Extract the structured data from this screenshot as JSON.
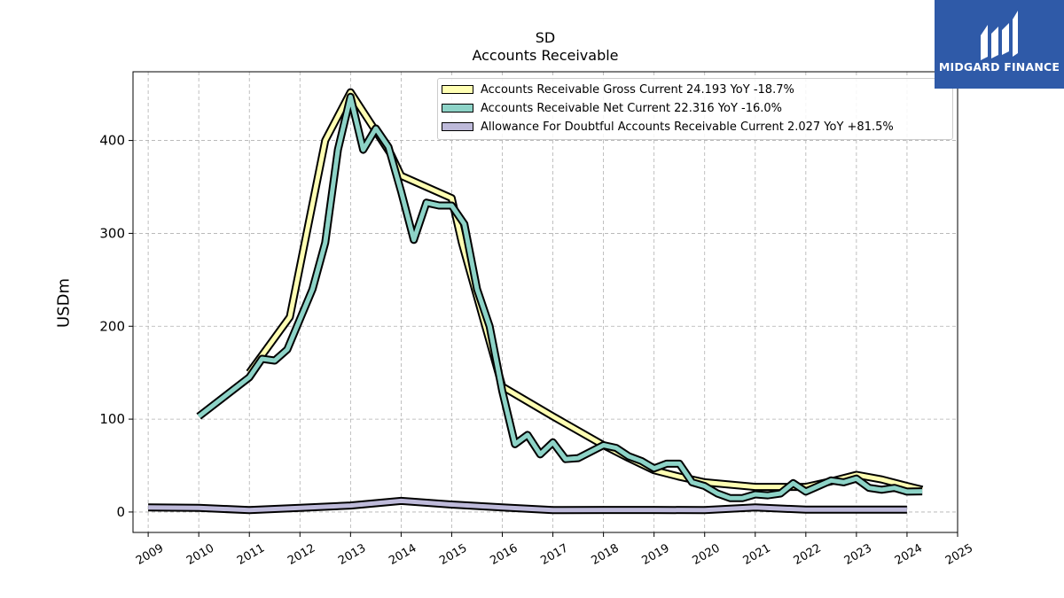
{
  "titles": {
    "line1": "SD",
    "line2": "Accounts Receivable"
  },
  "logo": {
    "text": "MIDGARD FINANCE",
    "color": "#2f5aa8"
  },
  "chart_data": {
    "type": "line",
    "title": "SD",
    "subtitle": "Accounts Receivable",
    "xlabel": "",
    "ylabel": "USDm",
    "xlim": [
      2008.7,
      2025.0
    ],
    "ylim": [
      -22,
      474
    ],
    "x_ticks": [
      2009,
      2010,
      2011,
      2012,
      2013,
      2014,
      2015,
      2016,
      2017,
      2018,
      2019,
      2020,
      2021,
      2022,
      2023,
      2024,
      2025
    ],
    "y_ticks": [
      0,
      100,
      200,
      300,
      400
    ],
    "grid": true,
    "legend_position": "top-right",
    "series": [
      {
        "name": "Accounts Receivable Gross Current  24.193 YoY -18.7%",
        "color": "#ffffb3",
        "points": [
          [
            2011.0,
            150
          ],
          [
            2011.8,
            210
          ],
          [
            2012.5,
            400
          ],
          [
            2013.0,
            452
          ],
          [
            2013.5,
            410
          ],
          [
            2013.8,
            385
          ],
          [
            2014.0,
            362
          ],
          [
            2015.0,
            338
          ],
          [
            2015.2,
            290
          ],
          [
            2016.0,
            135
          ],
          [
            2017.0,
            103
          ],
          [
            2018.0,
            72
          ],
          [
            2018.5,
            58
          ],
          [
            2019.0,
            45
          ],
          [
            2019.5,
            38
          ],
          [
            2020.0,
            32
          ],
          [
            2021.0,
            27
          ],
          [
            2021.5,
            27
          ],
          [
            2022.0,
            27
          ],
          [
            2022.5,
            33
          ],
          [
            2023.0,
            40
          ],
          [
            2023.5,
            35
          ],
          [
            2024.0,
            28
          ],
          [
            2024.3,
            24
          ]
        ]
      },
      {
        "name": "Accounts Receivable Net Current  22.316 YoY -16.0%",
        "color": "#8dd3c7",
        "points": [
          [
            2010.0,
            103
          ],
          [
            2011.0,
            145
          ],
          [
            2011.25,
            165
          ],
          [
            2011.5,
            163
          ],
          [
            2011.75,
            175
          ],
          [
            2012.25,
            240
          ],
          [
            2012.5,
            290
          ],
          [
            2012.75,
            390
          ],
          [
            2013.0,
            447
          ],
          [
            2013.25,
            390
          ],
          [
            2013.5,
            413
          ],
          [
            2013.75,
            393
          ],
          [
            2014.0,
            345
          ],
          [
            2014.25,
            293
          ],
          [
            2014.5,
            333
          ],
          [
            2014.75,
            330
          ],
          [
            2015.0,
            330
          ],
          [
            2015.25,
            310
          ],
          [
            2015.5,
            240
          ],
          [
            2015.75,
            200
          ],
          [
            2016.0,
            130
          ],
          [
            2016.25,
            73
          ],
          [
            2016.5,
            83
          ],
          [
            2016.75,
            62
          ],
          [
            2017.0,
            75
          ],
          [
            2017.25,
            57
          ],
          [
            2017.5,
            58
          ],
          [
            2018.0,
            72
          ],
          [
            2018.25,
            69
          ],
          [
            2018.5,
            60
          ],
          [
            2018.75,
            55
          ],
          [
            2019.0,
            47
          ],
          [
            2019.25,
            52
          ],
          [
            2019.5,
            52
          ],
          [
            2019.75,
            32
          ],
          [
            2020.0,
            28
          ],
          [
            2020.25,
            20
          ],
          [
            2020.5,
            15
          ],
          [
            2020.75,
            15
          ],
          [
            2021.0,
            19
          ],
          [
            2021.25,
            18
          ],
          [
            2021.5,
            20
          ],
          [
            2021.75,
            31
          ],
          [
            2022.0,
            22
          ],
          [
            2022.25,
            28
          ],
          [
            2022.5,
            34
          ],
          [
            2022.75,
            32
          ],
          [
            2023.0,
            36
          ],
          [
            2023.25,
            26
          ],
          [
            2023.5,
            24
          ],
          [
            2023.75,
            26
          ],
          [
            2024.0,
            22
          ],
          [
            2024.3,
            22.3
          ]
        ]
      },
      {
        "name": "Allowance For Doubtful Accounts Receivable Current  2.027 YoY +81.5%",
        "color": "#bebada",
        "points": [
          [
            2009.0,
            5
          ],
          [
            2010.0,
            4.5
          ],
          [
            2011.0,
            2
          ],
          [
            2012.0,
            4.5
          ],
          [
            2013.0,
            7
          ],
          [
            2014.0,
            12
          ],
          [
            2015.0,
            8
          ],
          [
            2016.0,
            5
          ],
          [
            2017.0,
            2
          ],
          [
            2018.0,
            2.2
          ],
          [
            2019.0,
            2.2
          ],
          [
            2020.0,
            2
          ],
          [
            2021.0,
            5
          ],
          [
            2022.0,
            2.5
          ],
          [
            2023.0,
            2.5
          ],
          [
            2024.0,
            2.5
          ]
        ]
      }
    ]
  }
}
